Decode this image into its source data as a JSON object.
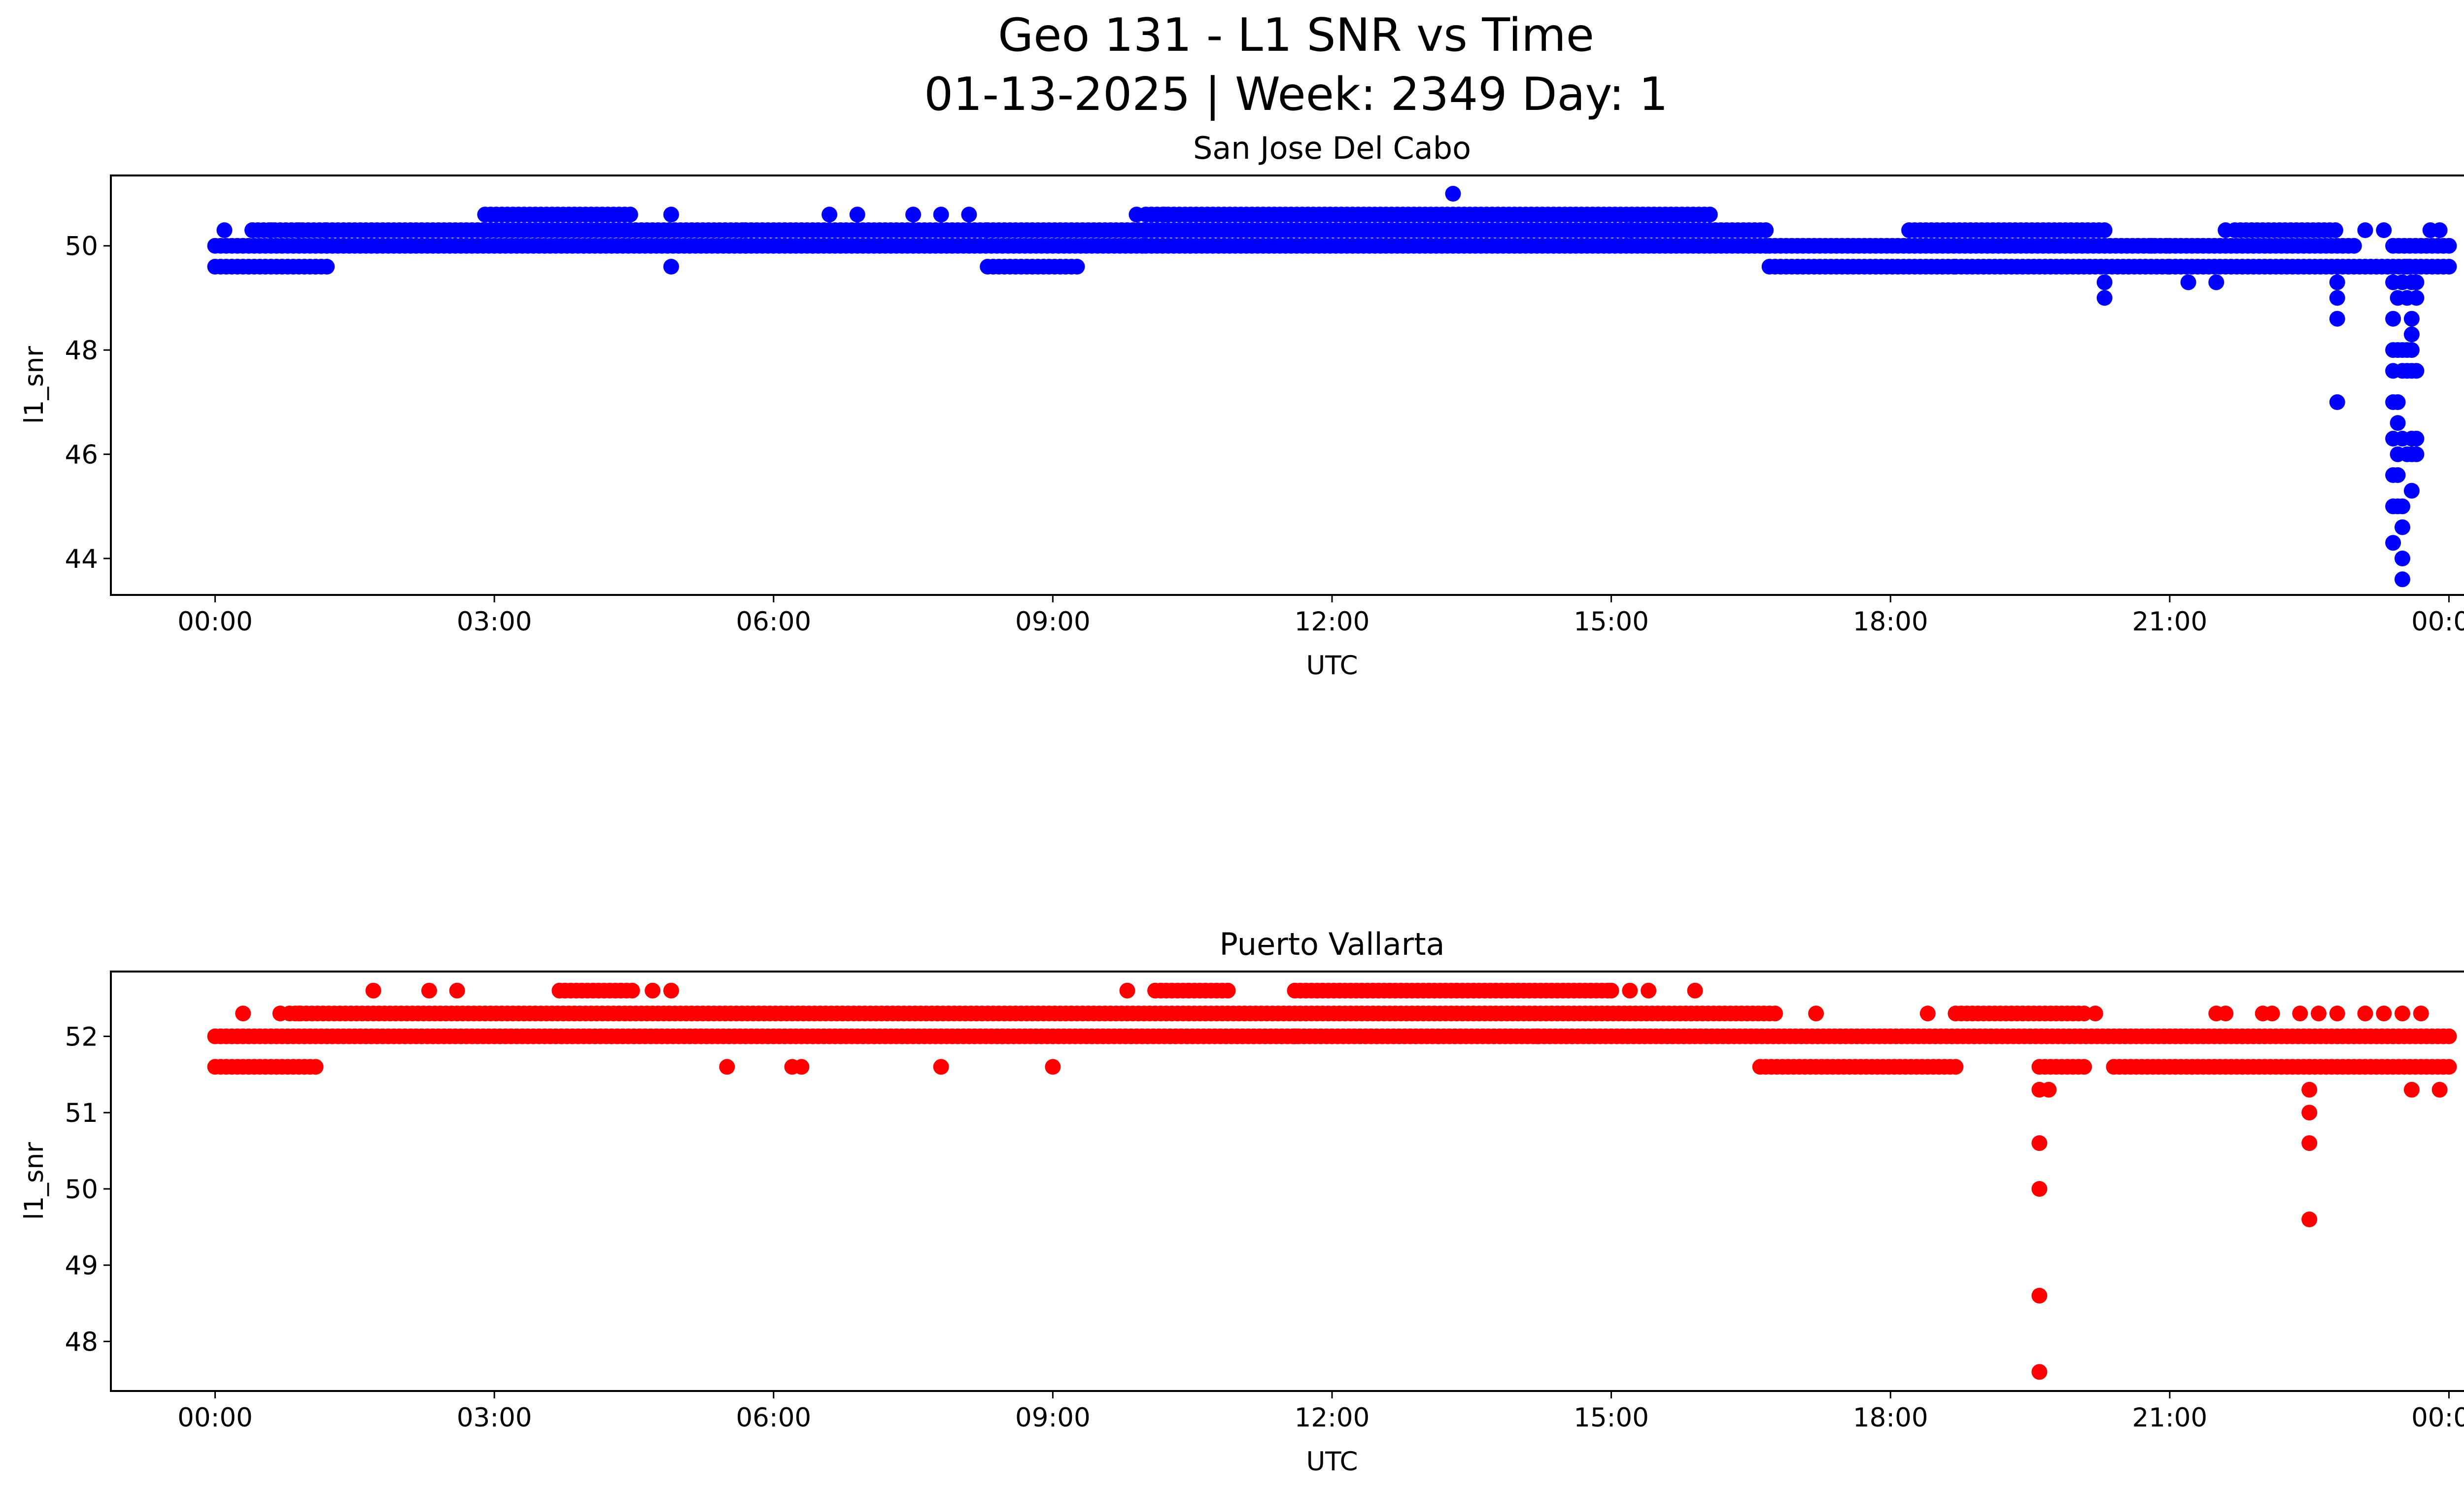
{
  "figure": {
    "title_line1": "Geo 131 - L1 SNR vs Time",
    "title_line2": "01-13-2025 | Week: 2349 Day: 1"
  },
  "chart_data": [
    {
      "type": "scatter",
      "title": "San Jose Del Cabo",
      "xlabel": "UTC",
      "ylabel": "l1_snr",
      "color": "#0000ff",
      "x_unit": "hours UTC",
      "x_ticks": [
        0,
        3,
        6,
        9,
        12,
        15,
        18,
        21,
        24
      ],
      "x_tick_labels": [
        "00:00",
        "03:00",
        "06:00",
        "09:00",
        "12:00",
        "15:00",
        "18:00",
        "21:00",
        "00:00"
      ],
      "xlim": [
        -1.12,
        25.12
      ],
      "y_ticks": [
        44,
        46,
        48,
        50
      ],
      "ylim": [
        43.3,
        51.35
      ],
      "bands": [
        {
          "value": 49.6,
          "from": 0.0,
          "to": 1.2
        },
        {
          "value": 50.0,
          "from": 0.0,
          "to": 1.2
        },
        {
          "value": 50.3,
          "from": 0.4,
          "to": 1.2
        },
        {
          "value": 50.3,
          "from": 1.2,
          "to": 2.9
        },
        {
          "value": 50.0,
          "from": 1.2,
          "to": 5.7
        },
        {
          "value": 50.6,
          "from": 2.9,
          "to": 4.5
        },
        {
          "value": 50.3,
          "from": 2.9,
          "to": 5.7
        },
        {
          "value": 50.3,
          "from": 5.7,
          "to": 8.3
        },
        {
          "value": 50.0,
          "from": 5.7,
          "to": 10.0
        },
        {
          "value": 49.6,
          "from": 8.3,
          "to": 9.3
        },
        {
          "value": 50.3,
          "from": 8.3,
          "to": 10.0
        },
        {
          "value": 50.3,
          "from": 10.0,
          "to": 16.7
        },
        {
          "value": 50.6,
          "from": 10.0,
          "to": 16.1
        },
        {
          "value": 50.0,
          "from": 10.0,
          "to": 16.7
        },
        {
          "value": 50.0,
          "from": 16.7,
          "to": 21.0
        },
        {
          "value": 49.6,
          "from": 16.7,
          "to": 18.7
        },
        {
          "value": 50.3,
          "from": 18.2,
          "to": 20.3
        },
        {
          "value": 49.6,
          "from": 18.7,
          "to": 21.0
        },
        {
          "value": 49.6,
          "from": 21.0,
          "to": 22.8
        },
        {
          "value": 50.0,
          "from": 21.0,
          "to": 23.0
        },
        {
          "value": 50.3,
          "from": 21.7,
          "to": 22.8
        },
        {
          "value": 49.6,
          "from": 22.8,
          "to": 24.0
        },
        {
          "value": 50.0,
          "from": 23.4,
          "to": 24.0
        }
      ],
      "points": [
        [
          0.1,
          50.3
        ],
        [
          0.4,
          50.3
        ],
        [
          0.6,
          50.3
        ],
        [
          0.9,
          50.3
        ],
        [
          4.9,
          50.6
        ],
        [
          4.9,
          49.6
        ],
        [
          6.6,
          50.6
        ],
        [
          6.9,
          50.6
        ],
        [
          7.5,
          50.6
        ],
        [
          7.8,
          50.6
        ],
        [
          8.1,
          50.6
        ],
        [
          9.9,
          50.6
        ],
        [
          10.2,
          50.6
        ],
        [
          13.3,
          51.0
        ],
        [
          15.2,
          50.3
        ],
        [
          20.3,
          49.3
        ],
        [
          20.3,
          49.0
        ],
        [
          20.8,
          50.0
        ],
        [
          21.2,
          49.3
        ],
        [
          21.5,
          49.3
        ],
        [
          21.6,
          50.3
        ],
        [
          22.8,
          49.3
        ],
        [
          22.8,
          49.0
        ],
        [
          22.8,
          48.6
        ],
        [
          22.8,
          47.0
        ],
        [
          23.1,
          50.3
        ],
        [
          23.3,
          50.3
        ],
        [
          23.8,
          50.3
        ],
        [
          23.9,
          50.3
        ],
        [
          23.4,
          49.3
        ],
        [
          23.4,
          48.6
        ],
        [
          23.4,
          48.0
        ],
        [
          23.4,
          47.6
        ],
        [
          23.4,
          47.0
        ],
        [
          23.4,
          46.3
        ],
        [
          23.4,
          45.6
        ],
        [
          23.4,
          45.0
        ],
        [
          23.4,
          44.3
        ],
        [
          23.45,
          49.0
        ],
        [
          23.45,
          48.0
        ],
        [
          23.45,
          47.0
        ],
        [
          23.45,
          46.6
        ],
        [
          23.45,
          46.0
        ],
        [
          23.45,
          45.6
        ],
        [
          23.45,
          45.0
        ],
        [
          23.5,
          49.3
        ],
        [
          23.5,
          48.0
        ],
        [
          23.5,
          47.6
        ],
        [
          23.5,
          46.3
        ],
        [
          23.5,
          45.0
        ],
        [
          23.5,
          44.6
        ],
        [
          23.5,
          44.0
        ],
        [
          23.5,
          43.6
        ],
        [
          23.55,
          49.6
        ],
        [
          23.55,
          49.0
        ],
        [
          23.55,
          48.0
        ],
        [
          23.55,
          47.6
        ],
        [
          23.55,
          46.0
        ],
        [
          23.6,
          49.3
        ],
        [
          23.6,
          48.6
        ],
        [
          23.6,
          48.3
        ],
        [
          23.6,
          48.0
        ],
        [
          23.6,
          47.6
        ],
        [
          23.6,
          46.3
        ],
        [
          23.6,
          46.0
        ],
        [
          23.6,
          45.3
        ],
        [
          23.65,
          49.3
        ],
        [
          23.65,
          49.0
        ],
        [
          23.65,
          47.6
        ],
        [
          23.65,
          46.3
        ],
        [
          23.65,
          46.0
        ]
      ]
    },
    {
      "type": "scatter",
      "title": "Puerto Vallarta",
      "xlabel": "UTC",
      "ylabel": "l1_snr",
      "color": "#ff0000",
      "x_unit": "hours UTC",
      "x_ticks": [
        0,
        3,
        6,
        9,
        12,
        15,
        18,
        21,
        24
      ],
      "x_tick_labels": [
        "00:00",
        "03:00",
        "06:00",
        "09:00",
        "12:00",
        "15:00",
        "18:00",
        "21:00",
        "00:00"
      ],
      "xlim": [
        -1.12,
        25.12
      ],
      "y_ticks": [
        48,
        49,
        50,
        51,
        52
      ],
      "ylim": [
        47.35,
        52.85
      ],
      "bands": [
        {
          "value": 51.6,
          "from": 0.0,
          "to": 1.1
        },
        {
          "value": 52.0,
          "from": 0.0,
          "to": 24.0
        },
        {
          "value": 52.3,
          "from": 0.8,
          "to": 16.8
        },
        {
          "value": 52.6,
          "from": 3.7,
          "to": 4.5
        },
        {
          "value": 52.6,
          "from": 10.1,
          "to": 10.9
        },
        {
          "value": 52.6,
          "from": 11.6,
          "to": 15.0
        },
        {
          "value": 51.6,
          "from": 16.6,
          "to": 18.7
        },
        {
          "value": 52.3,
          "from": 18.7,
          "to": 20.1
        },
        {
          "value": 51.6,
          "from": 19.6,
          "to": 20.1
        },
        {
          "value": 51.6,
          "from": 20.4,
          "to": 22.5
        },
        {
          "value": 51.6,
          "from": 22.5,
          "to": 24.0
        }
      ],
      "points": [
        [
          0.3,
          52.3
        ],
        [
          0.7,
          52.3
        ],
        [
          0.9,
          52.3
        ],
        [
          1.7,
          52.6
        ],
        [
          2.3,
          52.6
        ],
        [
          2.6,
          52.6
        ],
        [
          4.7,
          52.6
        ],
        [
          4.9,
          52.6
        ],
        [
          5.5,
          51.6
        ],
        [
          6.2,
          51.6
        ],
        [
          6.3,
          51.6
        ],
        [
          7.8,
          51.6
        ],
        [
          9.0,
          51.6
        ],
        [
          9.8,
          52.6
        ],
        [
          11.6,
          52.0
        ],
        [
          14.2,
          52.0
        ],
        [
          15.0,
          52.6
        ],
        [
          15.2,
          52.6
        ],
        [
          15.4,
          52.6
        ],
        [
          15.9,
          52.6
        ],
        [
          17.2,
          52.3
        ],
        [
          18.4,
          52.3
        ],
        [
          20.2,
          52.3
        ],
        [
          19.6,
          51.3
        ],
        [
          19.6,
          50.6
        ],
        [
          19.6,
          50.0
        ],
        [
          19.6,
          48.6
        ],
        [
          19.6,
          47.6
        ],
        [
          19.7,
          51.3
        ],
        [
          21.5,
          52.3
        ],
        [
          21.6,
          52.3
        ],
        [
          22.0,
          52.3
        ],
        [
          22.1,
          52.3
        ],
        [
          22.4,
          52.3
        ],
        [
          22.6,
          52.3
        ],
        [
          22.8,
          52.3
        ],
        [
          23.1,
          52.3
        ],
        [
          23.3,
          52.3
        ],
        [
          23.5,
          52.3
        ],
        [
          23.7,
          52.3
        ],
        [
          22.5,
          51.3
        ],
        [
          22.5,
          51.0
        ],
        [
          22.5,
          50.6
        ],
        [
          22.5,
          49.6
        ],
        [
          23.6,
          51.3
        ],
        [
          23.9,
          51.3
        ]
      ]
    }
  ]
}
